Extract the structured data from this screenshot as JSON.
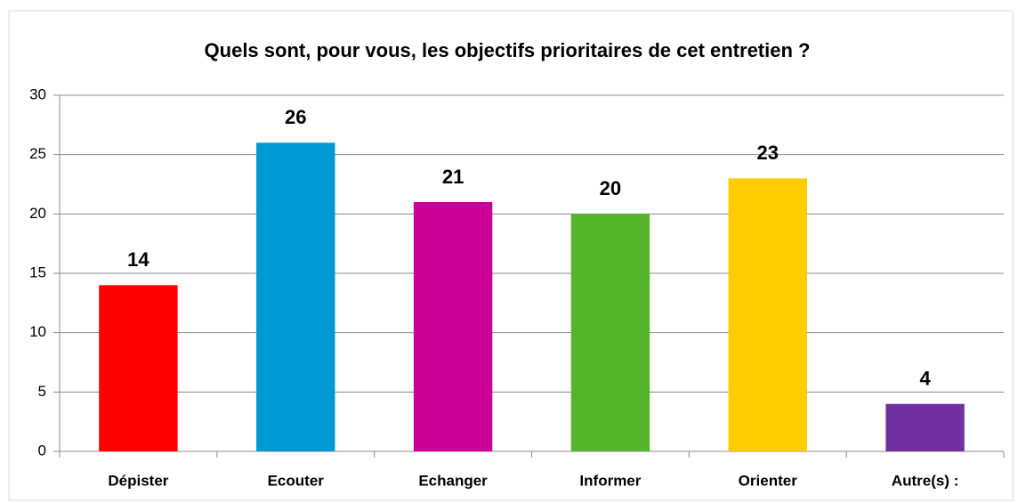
{
  "chart_data": {
    "type": "bar",
    "title": "Quels sont, pour vous, les objectifs prioritaires de cet entretien ?",
    "categories": [
      "Dépister",
      "Ecouter",
      "Echanger",
      "Informer",
      "Orienter",
      "Autre(s) :"
    ],
    "values": [
      14,
      26,
      21,
      20,
      23,
      4
    ],
    "colors": [
      "#ff0000",
      "#0099d4",
      "#cc0099",
      "#55b52a",
      "#ffcc00",
      "#7030a0"
    ],
    "ylim": [
      0,
      30
    ],
    "yticks": [
      0,
      5,
      10,
      15,
      20,
      25,
      30
    ],
    "grid": true
  }
}
